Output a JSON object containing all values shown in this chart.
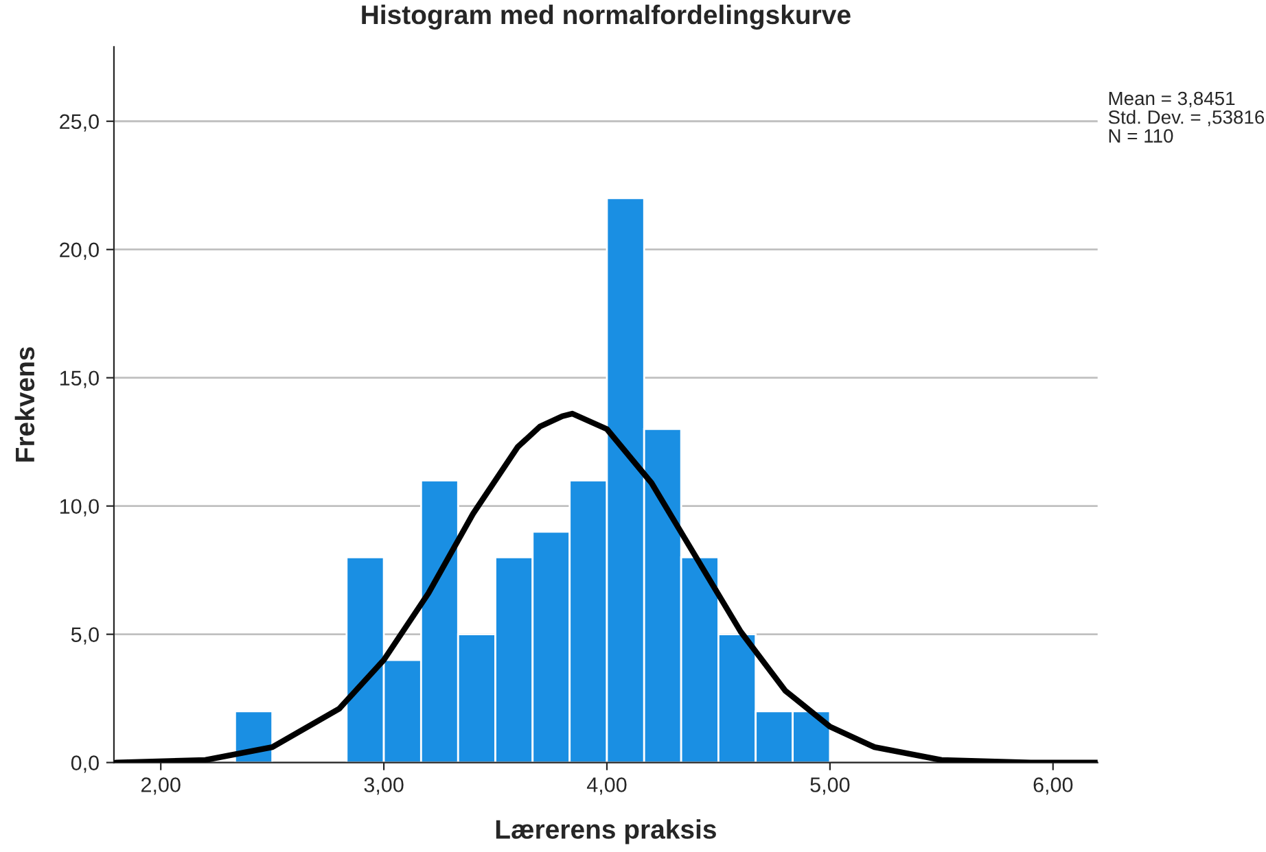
{
  "chart_data": {
    "type": "histogram",
    "title": "Histogram med normalfordelingskurve",
    "xlabel": "Lærerens praksis",
    "ylabel": "Frekvens",
    "series": [
      {
        "type": "histogram",
        "color": "#1a8fe3",
        "bins": [
          2.333,
          2.5,
          2.667,
          2.833,
          3.0,
          3.167,
          3.333,
          3.5,
          3.667,
          3.833,
          4.0,
          4.167,
          4.333,
          4.5,
          4.667,
          4.833,
          5.0
        ],
        "values": [
          2,
          0,
          0,
          8,
          4,
          11,
          5,
          8,
          9,
          11,
          22,
          13,
          8,
          5,
          2,
          2
        ]
      },
      {
        "type": "line",
        "color": "#000000",
        "x": [
          1.8,
          2.2,
          2.5,
          2.8,
          3.0,
          3.2,
          3.4,
          3.6,
          3.7,
          3.8,
          3.845,
          4.0,
          4.2,
          4.4,
          4.6,
          4.8,
          5.0,
          5.2,
          5.5,
          5.9,
          6.2
        ],
        "values": [
          0.0,
          0.1,
          0.6,
          2.1,
          4.0,
          6.6,
          9.7,
          12.3,
          13.1,
          13.5,
          13.6,
          13.0,
          10.9,
          8.0,
          5.1,
          2.8,
          1.4,
          0.6,
          0.1,
          0.0,
          0.0
        ]
      }
    ],
    "xlim": [
      1.79,
      6.2
    ],
    "ylim": [
      0,
      27.9
    ],
    "xticks": [
      {
        "value": 2,
        "label": "2,00"
      },
      {
        "value": 3,
        "label": "3,00"
      },
      {
        "value": 4,
        "label": "4,00"
      },
      {
        "value": 5,
        "label": "5,00"
      },
      {
        "value": 6,
        "label": "6,00"
      }
    ],
    "yticks": [
      {
        "value": 0,
        "label": "0,0"
      },
      {
        "value": 5,
        "label": "5,0"
      },
      {
        "value": 10,
        "label": "10,0"
      },
      {
        "value": 15,
        "label": "15,0"
      },
      {
        "value": 20,
        "label": "20,0"
      },
      {
        "value": 25,
        "label": "25,0"
      }
    ],
    "grid": "y",
    "annotations": [
      "Mean = 3,8451",
      "Std. Dev. = ,53816",
      "N = 110"
    ]
  }
}
